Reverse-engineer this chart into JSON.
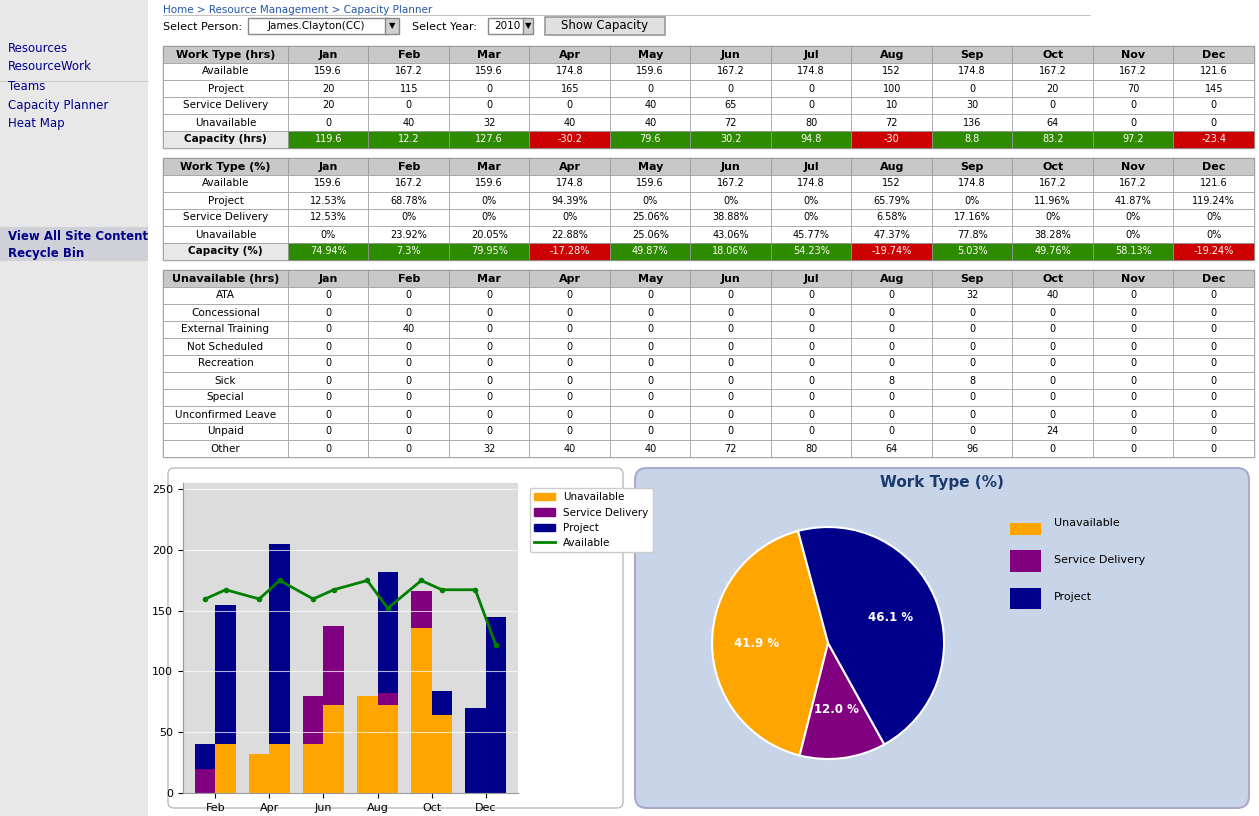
{
  "breadcrumb": "Home > Resource Management > Capacity Planner",
  "person": "James.Clayton(CC)",
  "year": "2010",
  "months": [
    "Jan",
    "Feb",
    "Mar",
    "Apr",
    "May",
    "Jun",
    "Jul",
    "Aug",
    "Sep",
    "Oct",
    "Nov",
    "Dec"
  ],
  "hrs_table": {
    "header": "Work Type (hrs)",
    "rows": [
      {
        "label": "Available",
        "values": [
          "159.6",
          "167.2",
          "159.6",
          "174.8",
          "159.6",
          "167.2",
          "174.8",
          "152",
          "174.8",
          "167.2",
          "167.2",
          "121.6"
        ]
      },
      {
        "label": "Project",
        "values": [
          "20",
          "115",
          "0",
          "165",
          "0",
          "0",
          "0",
          "100",
          "0",
          "20",
          "70",
          "145"
        ]
      },
      {
        "label": "Service Delivery",
        "values": [
          "20",
          "0",
          "0",
          "0",
          "40",
          "65",
          "0",
          "10",
          "30",
          "0",
          "0",
          "0"
        ]
      },
      {
        "label": "Unavailable",
        "values": [
          "0",
          "40",
          "32",
          "40",
          "40",
          "72",
          "80",
          "72",
          "136",
          "64",
          "0",
          "0"
        ]
      },
      {
        "label": "Capacity (hrs)",
        "values": [
          "119.6",
          "12.2",
          "127.6",
          "-30.2",
          "79.6",
          "30.2",
          "94.8",
          "-30",
          "8.8",
          "83.2",
          "97.2",
          "-23.4"
        ]
      }
    ]
  },
  "pct_table": {
    "header": "Work Type (%)",
    "rows": [
      {
        "label": "Available",
        "values": [
          "159.6",
          "167.2",
          "159.6",
          "174.8",
          "159.6",
          "167.2",
          "174.8",
          "152",
          "174.8",
          "167.2",
          "167.2",
          "121.6"
        ]
      },
      {
        "label": "Project",
        "values": [
          "12.53%",
          "68.78%",
          "0%",
          "94.39%",
          "0%",
          "0%",
          "0%",
          "65.79%",
          "0%",
          "11.96%",
          "41.87%",
          "119.24%"
        ]
      },
      {
        "label": "Service Delivery",
        "values": [
          "12.53%",
          "0%",
          "0%",
          "0%",
          "25.06%",
          "38.88%",
          "0%",
          "6.58%",
          "17.16%",
          "0%",
          "0%",
          "0%"
        ]
      },
      {
        "label": "Unavailable",
        "values": [
          "0%",
          "23.92%",
          "20.05%",
          "22.88%",
          "25.06%",
          "43.06%",
          "45.77%",
          "47.37%",
          "77.8%",
          "38.28%",
          "0%",
          "0%"
        ]
      },
      {
        "label": "Capacity (%)",
        "values": [
          "74.94%",
          "7.3%",
          "79.95%",
          "-17.28%",
          "49.87%",
          "18.06%",
          "54.23%",
          "-19.74%",
          "5.03%",
          "49.76%",
          "58.13%",
          "-19.24%"
        ]
      }
    ]
  },
  "unavail_table": {
    "header": "Unavailable (hrs)",
    "rows": [
      {
        "label": "ATA",
        "values": [
          "0",
          "0",
          "0",
          "0",
          "0",
          "0",
          "0",
          "0",
          "32",
          "40",
          "0",
          "0"
        ]
      },
      {
        "label": "Concessional",
        "values": [
          "0",
          "0",
          "0",
          "0",
          "0",
          "0",
          "0",
          "0",
          "0",
          "0",
          "0",
          "0"
        ]
      },
      {
        "label": "External Training",
        "values": [
          "0",
          "40",
          "0",
          "0",
          "0",
          "0",
          "0",
          "0",
          "0",
          "0",
          "0",
          "0"
        ]
      },
      {
        "label": "Not Scheduled",
        "values": [
          "0",
          "0",
          "0",
          "0",
          "0",
          "0",
          "0",
          "0",
          "0",
          "0",
          "0",
          "0"
        ]
      },
      {
        "label": "Recreation",
        "values": [
          "0",
          "0",
          "0",
          "0",
          "0",
          "0",
          "0",
          "0",
          "0",
          "0",
          "0",
          "0"
        ]
      },
      {
        "label": "Sick",
        "values": [
          "0",
          "0",
          "0",
          "0",
          "0",
          "0",
          "0",
          "8",
          "8",
          "0",
          "0",
          "0"
        ]
      },
      {
        "label": "Special",
        "values": [
          "0",
          "0",
          "0",
          "0",
          "0",
          "0",
          "0",
          "0",
          "0",
          "0",
          "0",
          "0"
        ]
      },
      {
        "label": "Unconfirmed Leave",
        "values": [
          "0",
          "0",
          "0",
          "0",
          "0",
          "0",
          "0",
          "0",
          "0",
          "0",
          "0",
          "0"
        ]
      },
      {
        "label": "Unpaid",
        "values": [
          "0",
          "0",
          "0",
          "0",
          "0",
          "0",
          "0",
          "0",
          "0",
          "24",
          "0",
          "0"
        ]
      },
      {
        "label": "Other",
        "values": [
          "0",
          "0",
          "32",
          "40",
          "40",
          "72",
          "80",
          "64",
          "96",
          "0",
          "0",
          "0"
        ]
      }
    ]
  },
  "bar_labels": [
    "Feb",
    "Apr",
    "Jun",
    "Aug",
    "Oct",
    "Dec"
  ],
  "bar_unavailable_left": [
    40,
    40,
    72,
    72,
    64,
    0
  ],
  "bar_project_left": [
    115,
    165,
    0,
    100,
    20,
    145
  ],
  "bar_svc_left": [
    0,
    0,
    65,
    10,
    0,
    0
  ],
  "bar_unavailable_right": [
    32,
    0,
    0,
    80,
    0,
    0
  ],
  "bar_project_right": [
    0,
    0,
    0,
    0,
    70,
    0
  ],
  "bar_svc_right": [
    0,
    40,
    0,
    0,
    0,
    0
  ],
  "avail_line": [
    159.6,
    167.2,
    159.6,
    174.8,
    159.6,
    167.2,
    174.8,
    152,
    174.8,
    167.2,
    167.2,
    121.6
  ],
  "avail_line_x": [
    0,
    1,
    2,
    3,
    4,
    5,
    6,
    7,
    8,
    9,
    10,
    11
  ],
  "pie_values": [
    41.9,
    12.0,
    46.1
  ],
  "pie_labels_inside": [
    "41.9 %",
    "12.0 %",
    "46.1 %"
  ],
  "pie_legend_labels": [
    "Unavailable",
    "Service Delivery",
    "Project"
  ],
  "pie_colors": [
    "#FFA500",
    "#800080",
    "#00008B"
  ],
  "pie_title": "Work Type (%)",
  "color_green": "#2E8B00",
  "color_red": "#CC0000",
  "color_header_bg": "#C8C8C8",
  "color_white": "#FFFFFF",
  "color_border": "#999999",
  "color_sidebar_bg": "#E8E8E8",
  "color_sidebar_highlight": "#D0D0D8",
  "color_available_line": "#008000",
  "color_bar_unavailable": "#FFA500",
  "color_bar_service": "#800080",
  "color_bar_project": "#00008B",
  "color_pie_bg": "#C8D4E8",
  "color_chart_outer_bg": "#F0F0F0",
  "color_bar_chart_bg": "#DCDCDC"
}
